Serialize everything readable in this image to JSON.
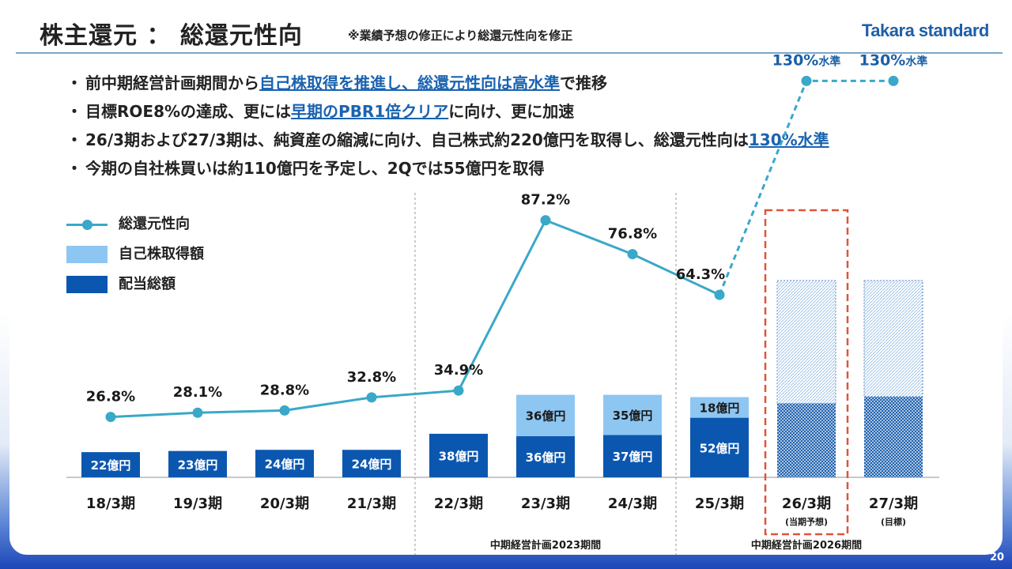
{
  "header": {
    "title": "株主還元 ： 総還元性向",
    "note": "※業績予想の修正により総還元性向を修正",
    "logo": "Takara standard"
  },
  "bullets": [
    {
      "dot": "・",
      "pre": "前中期経営計画期間から",
      "hl": "自己株取得を推進し、総還元性向は高水準",
      "post": "で推移"
    },
    {
      "dot": "・",
      "pre": "目標ROE8%の達成、更には",
      "hl": "早期のPBR1倍クリア",
      "post": "に向け、更に加速"
    },
    {
      "dot": "・",
      "pre": "26/3期および27/3期は、純資産の縮減に向け、自己株式約220億円を取得し、総還元性向は",
      "hl": "130%水準",
      "post": ""
    },
    {
      "dot": "・",
      "pre": "今期の自社株買いは約110億円を予定し、2Qでは55億円を取得",
      "hl": "",
      "post": ""
    }
  ],
  "legend": {
    "payout_ratio": "総還元性向",
    "buyback": "自己株取得額",
    "dividend": "配当総額"
  },
  "page_number": "20",
  "colors": {
    "dividend": "#0b57b0",
    "buyback": "#8ec6f2",
    "line": "#3aa8c8",
    "forecast_box": "#e0533a",
    "highlight": "#1a63b0"
  },
  "chart_data": {
    "type": "bar",
    "stacked": true,
    "categories": [
      "18/3期",
      "19/3期",
      "20/3期",
      "21/3期",
      "22/3期",
      "23/3期",
      "24/3期",
      "25/3期",
      "26/3期",
      "27/3期"
    ],
    "category_notes": [
      "",
      "",
      "",
      "",
      "",
      "",
      "",
      "",
      "(当期予想)",
      "(目標)"
    ],
    "series": [
      {
        "name": "配当総額",
        "values": [
          22,
          23,
          24,
          24,
          38,
          36,
          37,
          52,
          null,
          null
        ],
        "labels": [
          "22億円",
          "23億円",
          "24億円",
          "24億円",
          "38億円",
          "36億円",
          "37億円",
          "52億円",
          "",
          ""
        ]
      },
      {
        "name": "自己株取得額",
        "values": [
          0,
          0,
          0,
          0,
          0,
          36,
          35,
          18,
          null,
          null
        ],
        "labels": [
          "",
          "",
          "",
          "",
          "",
          "36億円",
          "35億円",
          "18億円",
          "",
          ""
        ]
      },
      {
        "name": "総還元性向",
        "type": "line",
        "values": [
          26.8,
          28.1,
          28.8,
          32.8,
          34.9,
          87.2,
          76.8,
          64.3,
          130,
          130
        ],
        "labels": [
          "26.8%",
          "28.1%",
          "28.8%",
          "32.8%",
          "34.9%",
          "87.2%",
          "76.8%",
          "64.3%",
          "130%水準",
          "130%水準"
        ]
      }
    ],
    "forecast_bars": [
      {
        "category": "26/3期",
        "dividend_share": 0.375,
        "total_share": 1.0
      },
      {
        "category": "27/3期",
        "dividend_share": 0.41,
        "total_share": 1.0
      }
    ],
    "forecast_dashed_from_index": 7,
    "highlight_box_category": "26/3期",
    "periods": [
      {
        "label": "中期経営計画2023期間",
        "from": "22/3期",
        "to": "24/3期"
      },
      {
        "label": "中期経営計画2026期間",
        "from": "25/3期",
        "to": "27/3期"
      }
    ]
  }
}
